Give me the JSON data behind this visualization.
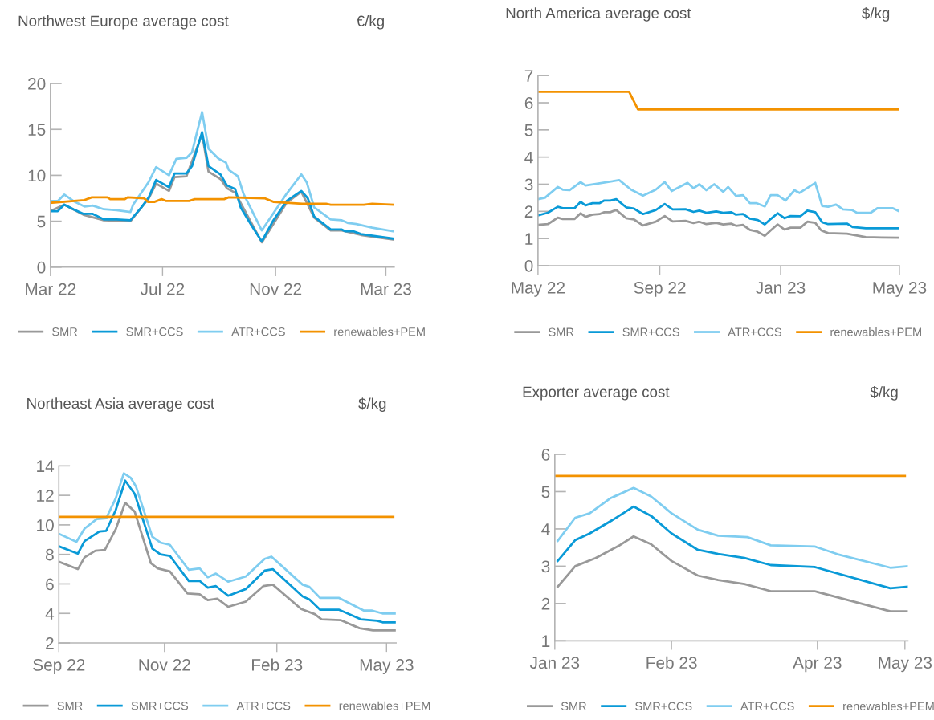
{
  "chart_data": [
    {
      "type": "line",
      "title": "Northwest Europe average cost",
      "ylabel": "€/kg",
      "legend": "bottom",
      "grid": false,
      "marker": "none",
      "line_style": "solid",
      "ylim": [
        0,
        20
      ],
      "yticks": [
        0,
        5,
        10,
        15,
        20
      ],
      "xlim": [
        "2022-03-01",
        "2023-03-10"
      ],
      "xticks": [
        {
          "value": "2022-03-01",
          "label": "Mar 22"
        },
        {
          "value": "2022-07-01",
          "label": "Jul 22"
        },
        {
          "value": "2022-11-01",
          "label": "Nov 22"
        },
        {
          "value": "2023-03-01",
          "label": "Mar 23"
        }
      ],
      "series": [
        {
          "name": "SMR",
          "color": "#999999",
          "x": [
            "2022-03-01",
            "2022-03-16",
            "2022-04-06",
            "2022-04-28",
            "2022-05-27",
            "2022-06-16",
            "2022-06-24",
            "2022-07-08",
            "2022-07-14",
            "2022-07-27",
            "2022-08-13",
            "2022-08-20",
            "2022-09-02",
            "2022-09-09",
            "2022-09-18",
            "2022-10-17",
            "2022-11-13",
            "2022-11-29",
            "2022-12-13",
            "2022-12-31",
            "2023-01-12",
            "2023-02-02",
            "2023-03-09"
          ],
          "values": [
            6.1,
            6.8,
            5.7,
            5.1,
            5.0,
            7.5,
            9.1,
            8.3,
            9.8,
            9.9,
            14.5,
            10.4,
            9.6,
            8.6,
            8.1,
            2.7,
            7.0,
            8.2,
            5.4,
            4.0,
            4.0,
            3.5,
            3.0
          ]
        },
        {
          "name": "SMR+CCS",
          "color": "#0a9ad7",
          "x": [
            "2022-03-01",
            "2022-03-09",
            "2022-03-16",
            "2022-03-26",
            "2022-04-06",
            "2022-04-16",
            "2022-04-28",
            "2022-05-12",
            "2022-05-27",
            "2022-06-08",
            "2022-06-16",
            "2022-06-24",
            "2022-07-08",
            "2022-07-14",
            "2022-07-27",
            "2022-08-02",
            "2022-08-13",
            "2022-08-20",
            "2022-09-02",
            "2022-09-09",
            "2022-09-18",
            "2022-09-24",
            "2022-10-06",
            "2022-10-17",
            "2022-10-29",
            "2022-11-13",
            "2022-11-29",
            "2022-12-06",
            "2022-12-13",
            "2022-12-31",
            "2023-01-12",
            "2023-01-16",
            "2023-01-25",
            "2023-02-02",
            "2023-03-09"
          ],
          "values": [
            6.1,
            6.1,
            6.8,
            6.3,
            5.8,
            5.8,
            5.2,
            5.2,
            5.1,
            6.5,
            7.6,
            9.5,
            8.7,
            10.2,
            10.2,
            11.0,
            14.7,
            11.0,
            10.1,
            8.9,
            8.5,
            6.5,
            4.5,
            2.8,
            5.0,
            7.2,
            8.3,
            7.5,
            5.5,
            4.1,
            4.1,
            3.9,
            3.9,
            3.6,
            3.1
          ]
        },
        {
          "name": "ATR+CCS",
          "color": "#7fcdf0",
          "x": [
            "2022-03-01",
            "2022-03-09",
            "2022-03-16",
            "2022-03-26",
            "2022-04-07",
            "2022-04-16",
            "2022-04-28",
            "2022-05-12",
            "2022-05-27",
            "2022-05-30",
            "2022-06-16",
            "2022-06-24",
            "2022-07-08",
            "2022-07-16",
            "2022-07-27",
            "2022-08-02",
            "2022-08-13",
            "2022-08-20",
            "2022-08-31",
            "2022-09-08",
            "2022-09-11",
            "2022-09-21",
            "2022-09-27",
            "2022-10-17",
            "2022-11-13",
            "2022-11-29",
            "2022-12-05",
            "2022-12-13",
            "2022-12-31",
            "2023-01-12",
            "2023-01-19",
            "2023-01-28",
            "2023-02-14",
            "2023-03-09"
          ],
          "values": [
            7.2,
            7.2,
            7.9,
            7.2,
            6.6,
            6.7,
            6.3,
            6.2,
            6.0,
            6.8,
            9.3,
            10.9,
            10.0,
            11.8,
            11.9,
            12.5,
            16.9,
            12.9,
            11.8,
            11.4,
            10.6,
            9.9,
            8.0,
            4.0,
            8.0,
            10.1,
            9.2,
            6.5,
            5.2,
            5.1,
            4.8,
            4.7,
            4.3,
            3.9
          ]
        },
        {
          "name": "renewables+PEM",
          "color": "#f39200",
          "x": [
            "2022-03-01",
            "2022-04-07",
            "2022-04-15",
            "2022-05-02",
            "2022-05-05",
            "2022-05-21",
            "2022-05-24",
            "2022-06-11",
            "2022-06-15",
            "2022-06-22",
            "2022-06-30",
            "2022-07-05",
            "2022-07-30",
            "2022-08-05",
            "2022-09-06",
            "2022-09-11",
            "2022-10-20",
            "2022-10-30",
            "2022-11-30",
            "2022-12-26",
            "2022-12-31",
            "2023-02-05",
            "2023-02-14",
            "2023-03-09"
          ],
          "values": [
            7.0,
            7.3,
            7.6,
            7.6,
            7.4,
            7.4,
            7.6,
            7.5,
            7.1,
            7.1,
            7.4,
            7.2,
            7.2,
            7.4,
            7.4,
            7.6,
            7.5,
            7.1,
            6.9,
            6.9,
            6.8,
            6.8,
            6.9,
            6.8
          ]
        }
      ]
    },
    {
      "type": "line",
      "title": "North America average cost",
      "ylabel": "$/kg",
      "legend": "bottom",
      "grid": false,
      "marker": "none",
      "line_style": "solid",
      "ylim": [
        0,
        7
      ],
      "yticks": [
        0,
        1,
        2,
        3,
        4,
        5,
        6,
        7
      ],
      "xlim": [
        "2022-05-01",
        "2023-05-01"
      ],
      "xticks": [
        {
          "value": "2022-05-01",
          "label": "May 22"
        },
        {
          "value": "2022-09-01",
          "label": "Sep 22"
        },
        {
          "value": "2023-01-01",
          "label": "Jan 23"
        },
        {
          "value": "2023-05-01",
          "label": "May 23"
        }
      ],
      "series": [
        {
          "name": "SMR",
          "color": "#999999",
          "x": [
            "2022-05-01",
            "2022-05-11",
            "2022-05-21",
            "2022-05-26",
            "2022-06-07",
            "2022-06-13",
            "2022-06-18",
            "2022-06-25",
            "2022-07-02",
            "2022-07-07",
            "2022-07-13",
            "2022-07-19",
            "2022-07-29",
            "2022-08-06",
            "2022-08-15",
            "2022-08-28",
            "2022-09-06",
            "2022-09-14",
            "2022-09-27",
            "2022-10-05",
            "2022-10-11",
            "2022-10-18",
            "2022-10-28",
            "2022-11-04",
            "2022-11-12",
            "2022-11-17",
            "2022-11-24",
            "2022-12-01",
            "2022-12-09",
            "2022-12-16",
            "2022-12-22",
            "2022-12-29",
            "2023-01-05",
            "2023-01-11",
            "2023-01-21",
            "2023-01-28",
            "2023-02-05",
            "2023-02-11",
            "2023-02-18",
            "2023-03-09",
            "2023-03-28",
            "2023-04-13",
            "2023-05-01"
          ],
          "values": [
            1.5,
            1.53,
            1.77,
            1.72,
            1.72,
            1.93,
            1.8,
            1.88,
            1.9,
            1.97,
            1.97,
            2.05,
            1.75,
            1.7,
            1.48,
            1.62,
            1.83,
            1.63,
            1.65,
            1.57,
            1.62,
            1.53,
            1.58,
            1.52,
            1.55,
            1.47,
            1.5,
            1.32,
            1.25,
            1.1,
            1.3,
            1.52,
            1.33,
            1.4,
            1.4,
            1.62,
            1.58,
            1.3,
            1.2,
            1.18,
            1.05,
            1.04,
            1.03
          ]
        },
        {
          "name": "SMR+CCS",
          "color": "#0a9ad7",
          "x": [
            "2022-05-01",
            "2022-05-11",
            "2022-05-21",
            "2022-05-26",
            "2022-06-07",
            "2022-06-13",
            "2022-06-18",
            "2022-06-25",
            "2022-07-02",
            "2022-07-07",
            "2022-07-13",
            "2022-07-19",
            "2022-07-29",
            "2022-08-06",
            "2022-08-15",
            "2022-08-28",
            "2022-09-06",
            "2022-09-14",
            "2022-09-27",
            "2022-10-05",
            "2022-10-11",
            "2022-10-18",
            "2022-10-28",
            "2022-11-04",
            "2022-11-12",
            "2022-11-17",
            "2022-11-24",
            "2022-12-01",
            "2022-12-09",
            "2022-12-16",
            "2022-12-22",
            "2022-12-29",
            "2023-01-05",
            "2023-01-11",
            "2023-01-21",
            "2023-01-28",
            "2023-02-05",
            "2023-02-12",
            "2023-02-18",
            "2023-03-09",
            "2023-03-15",
            "2023-03-28",
            "2023-05-01"
          ],
          "values": [
            1.85,
            1.95,
            2.17,
            2.12,
            2.12,
            2.35,
            2.22,
            2.3,
            2.3,
            2.4,
            2.4,
            2.45,
            2.15,
            2.1,
            1.9,
            2.05,
            2.27,
            2.07,
            2.08,
            1.98,
            2.03,
            1.95,
            2.0,
            1.95,
            1.97,
            1.88,
            1.9,
            1.73,
            1.68,
            1.52,
            1.72,
            1.93,
            1.75,
            1.83,
            1.82,
            2.03,
            1.97,
            1.6,
            1.53,
            1.55,
            1.42,
            1.38,
            1.38
          ]
        },
        {
          "name": "ATR+CCS",
          "color": "#7fcdf0",
          "x": [
            "2022-05-01",
            "2022-05-08",
            "2022-05-21",
            "2022-05-26",
            "2022-06-02",
            "2022-06-13",
            "2022-06-18",
            "2022-07-22",
            "2022-08-03",
            "2022-08-15",
            "2022-08-28",
            "2022-09-06",
            "2022-09-13",
            "2022-09-29",
            "2022-10-05",
            "2022-10-11",
            "2022-10-18",
            "2022-10-26",
            "2022-11-04",
            "2022-11-09",
            "2022-11-17",
            "2022-11-24",
            "2022-12-01",
            "2022-12-08",
            "2022-12-16",
            "2022-12-22",
            "2022-12-29",
            "2023-01-06",
            "2023-01-15",
            "2023-01-20",
            "2023-02-05",
            "2023-02-12",
            "2023-02-18",
            "2023-02-26",
            "2023-03-05",
            "2023-03-14",
            "2023-03-19",
            "2023-04-02",
            "2023-04-09",
            "2023-04-24",
            "2023-05-01"
          ],
          "values": [
            2.45,
            2.5,
            2.9,
            2.8,
            2.78,
            3.08,
            2.95,
            3.15,
            2.8,
            2.58,
            2.8,
            3.08,
            2.75,
            3.05,
            2.85,
            3.0,
            2.78,
            3.0,
            2.72,
            2.9,
            2.57,
            2.6,
            2.3,
            2.3,
            2.18,
            2.6,
            2.6,
            2.4,
            2.78,
            2.68,
            3.05,
            2.2,
            2.17,
            2.25,
            2.07,
            2.05,
            1.95,
            1.95,
            2.12,
            2.12,
            2.0
          ]
        },
        {
          "name": "renewables+PEM",
          "color": "#f39200",
          "x": [
            "2022-05-01",
            "2022-08-01",
            "2022-08-10",
            "2023-05-01"
          ],
          "values": [
            6.4,
            6.4,
            5.75,
            5.75
          ]
        }
      ]
    },
    {
      "type": "line",
      "title": "Northeast Asia average cost",
      "ylabel": "$/kg",
      "legend": "bottom",
      "grid": false,
      "marker": "none",
      "line_style": "solid",
      "ylim": [
        2,
        14
      ],
      "yticks": [
        2,
        4,
        6,
        8,
        10,
        12,
        14
      ],
      "xlim": [
        "2022-09-01",
        "2023-05-08"
      ],
      "xticks": [
        {
          "value": "2022-09-01",
          "label": "Sep 22"
        },
        {
          "value": "2022-11-18",
          "label": "Nov 22"
        },
        {
          "value": "2023-02-09",
          "label": "Feb 23"
        },
        {
          "value": "2023-05-01",
          "label": "May 23"
        }
      ],
      "series": [
        {
          "name": "SMR",
          "color": "#999999",
          "x": [
            "2022-09-01",
            "2022-09-15",
            "2022-09-20",
            "2022-09-28",
            "2022-10-05",
            "2022-10-13",
            "2022-10-20",
            "2022-10-27",
            "2022-11-08",
            "2022-11-13",
            "2022-11-22",
            "2022-12-05",
            "2022-12-14",
            "2022-12-20",
            "2022-12-27",
            "2023-01-04",
            "2023-01-17",
            "2023-01-30",
            "2023-02-06",
            "2023-02-27",
            "2023-03-09",
            "2023-03-14",
            "2023-03-28",
            "2023-04-11",
            "2023-04-21",
            "2023-05-07"
          ],
          "values": [
            7.5,
            7.0,
            7.8,
            8.25,
            8.3,
            9.7,
            11.5,
            10.9,
            7.4,
            7.05,
            6.85,
            5.35,
            5.3,
            4.9,
            5.0,
            4.45,
            4.8,
            5.85,
            5.95,
            4.3,
            3.95,
            3.6,
            3.55,
            3.0,
            2.85,
            2.85
          ]
        },
        {
          "name": "SMR+CCS",
          "color": "#0a9ad7",
          "x": [
            "2022-09-01",
            "2022-09-15",
            "2022-09-20",
            "2022-10-01",
            "2022-10-06",
            "2022-10-13",
            "2022-10-20",
            "2022-10-27",
            "2022-11-09",
            "2022-11-15",
            "2022-11-22",
            "2022-12-06",
            "2022-12-14",
            "2022-12-20",
            "2022-12-26",
            "2023-01-04",
            "2023-01-17",
            "2023-01-31",
            "2023-02-06",
            "2023-02-28",
            "2023-03-05",
            "2023-03-13",
            "2023-03-27",
            "2023-04-12",
            "2023-04-24",
            "2023-04-28",
            "2023-05-07"
          ],
          "values": [
            8.55,
            8.05,
            8.9,
            9.55,
            9.6,
            11.0,
            13.0,
            12.1,
            8.4,
            8.0,
            7.9,
            6.2,
            6.2,
            5.75,
            5.85,
            5.2,
            5.65,
            6.9,
            7.0,
            5.15,
            4.95,
            4.25,
            4.25,
            3.6,
            3.5,
            3.4,
            3.4
          ]
        },
        {
          "name": "ATR+CCS",
          "color": "#7fcdf0",
          "x": [
            "2022-09-01",
            "2022-09-14",
            "2022-09-20",
            "2022-09-29",
            "2022-10-06",
            "2022-10-13",
            "2022-10-19",
            "2022-10-24",
            "2022-10-28",
            "2022-11-09",
            "2022-11-15",
            "2022-11-22",
            "2022-12-06",
            "2022-12-14",
            "2022-12-20",
            "2022-12-26",
            "2023-01-04",
            "2023-01-17",
            "2023-01-31",
            "2023-02-05",
            "2023-02-28",
            "2023-03-05",
            "2023-03-13",
            "2023-03-27",
            "2023-04-14",
            "2023-04-20",
            "2023-04-28",
            "2023-05-07"
          ],
          "values": [
            9.4,
            8.85,
            9.75,
            10.4,
            10.45,
            11.8,
            13.5,
            13.2,
            12.6,
            9.2,
            8.8,
            8.65,
            6.95,
            7.05,
            6.45,
            6.7,
            6.15,
            6.5,
            7.7,
            7.85,
            5.95,
            5.8,
            5.05,
            5.05,
            4.2,
            4.2,
            4.0,
            4.0
          ]
        },
        {
          "name": "renewables+PEM",
          "color": "#f39200",
          "x": [
            "2022-09-01",
            "2023-05-06"
          ],
          "values": [
            10.55,
            10.55
          ]
        }
      ]
    },
    {
      "type": "line",
      "title": "Exporter average cost",
      "ylabel": "$/kg",
      "legend": "bottom",
      "grid": false,
      "marker": "none",
      "line_style": "solid",
      "ylim": [
        1,
        6
      ],
      "yticks": [
        1,
        2,
        3,
        4,
        5,
        6
      ],
      "xlim": [
        "2023-01-01",
        "2023-05-02"
      ],
      "xticks": [
        {
          "value": "2023-01-01",
          "label": "Jan 23"
        },
        {
          "value": "2023-02-10",
          "label": "Feb 23"
        },
        {
          "value": "2023-04-01",
          "label": "Apr 23"
        },
        {
          "value": "2023-05-01",
          "label": "May 23"
        }
      ],
      "series": [
        {
          "name": "SMR",
          "color": "#999999",
          "x": [
            "2023-01-02",
            "2023-01-08",
            "2023-01-15",
            "2023-01-23",
            "2023-01-28",
            "2023-02-03",
            "2023-02-10",
            "2023-02-19",
            "2023-02-26",
            "2023-03-07",
            "2023-03-16",
            "2023-03-31",
            "2023-04-26",
            "2023-05-02"
          ],
          "values": [
            2.45,
            3.0,
            3.22,
            3.55,
            3.8,
            3.59,
            3.14,
            2.75,
            2.63,
            2.52,
            2.33,
            2.33,
            1.79,
            1.79
          ]
        },
        {
          "name": "SMR+CCS",
          "color": "#0a9ad7",
          "x": [
            "2023-01-02",
            "2023-01-08",
            "2023-01-13",
            "2023-01-21",
            "2023-01-28",
            "2023-02-03",
            "2023-02-10",
            "2023-02-19",
            "2023-02-26",
            "2023-03-07",
            "2023-03-16",
            "2023-03-31",
            "2023-04-26",
            "2023-05-02"
          ],
          "values": [
            3.14,
            3.7,
            3.88,
            4.25,
            4.6,
            4.35,
            3.88,
            3.44,
            3.33,
            3.22,
            3.03,
            2.98,
            2.41,
            2.45
          ]
        },
        {
          "name": "ATR+CCS",
          "color": "#7fcdf0",
          "x": [
            "2023-01-02",
            "2023-01-08",
            "2023-01-13",
            "2023-01-20",
            "2023-01-28",
            "2023-02-03",
            "2023-02-10",
            "2023-02-19",
            "2023-02-26",
            "2023-03-08",
            "2023-03-16",
            "2023-03-31",
            "2023-04-08",
            "2023-04-26",
            "2023-05-02"
          ],
          "values": [
            3.68,
            4.3,
            4.42,
            4.82,
            5.1,
            4.87,
            4.42,
            3.98,
            3.82,
            3.78,
            3.56,
            3.53,
            3.32,
            2.96,
            3.0
          ]
        },
        {
          "name": "renewables+PEM",
          "color": "#f39200",
          "x": [
            "2023-01-01",
            "2023-05-01"
          ],
          "values": [
            5.42,
            5.42
          ]
        }
      ]
    }
  ]
}
